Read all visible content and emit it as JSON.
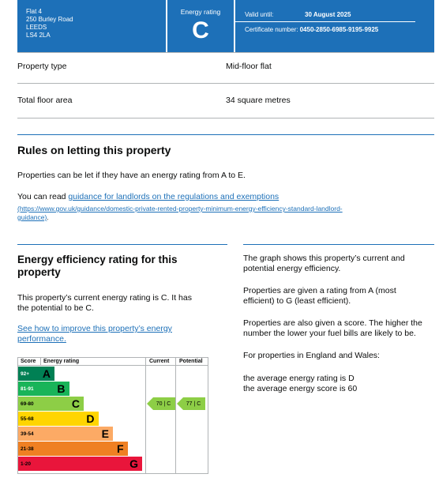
{
  "header": {
    "address": [
      "Flat 4",
      "250 Burley Road",
      "LEEDS",
      "LS4 2LA"
    ],
    "energy_rating_label": "Energy rating",
    "energy_rating_value": "C",
    "valid_until_label": "Valid until:",
    "valid_until_value": "30 August 2025",
    "certificate_label": "Certificate number:",
    "certificate_value": "0450-2850-6985-9195-9925"
  },
  "summary": [
    {
      "key": "Property type",
      "value": "Mid-floor flat"
    },
    {
      "key": "Total floor area",
      "value": "34 square metres"
    }
  ],
  "letting": {
    "heading": "Rules on letting this property",
    "para1": "Properties can be let if they have an energy rating from A to E.",
    "para2_prefix": "You can read ",
    "link_text": "guidance for landlords on the regulations and exemptions",
    "link_url_line1": "(https://www.gov.uk/guidance/domestic-private-rented-property-minimum-energy-efficiency-standard-landlord-",
    "link_url_line2": "guidance)",
    "para2_suffix": "."
  },
  "efficiency": {
    "heading_line1": "Energy efficiency rating for this",
    "heading_line2": "property",
    "para1_line1": "This property’s current energy rating is C. It has",
    "para1_line2": "the potential to be C.",
    "link_line1": "See how to improve this property’s energy",
    "link_line2": "performance.",
    "right_paras": [
      [
        "The graph shows this property’s current and",
        "potential energy efficiency."
      ],
      [
        "Properties are given a rating from A (most",
        "efficient) to G (least efficient)."
      ],
      [
        "Properties are also given a score. The higher the",
        "number the lower your fuel bills are likely to be."
      ],
      [
        "For properties in England and Wales:"
      ],
      [
        "the average energy rating is D",
        "the average energy score is 60"
      ]
    ]
  },
  "chart_data": {
    "type": "table",
    "columns": [
      "Score",
      "Energy rating",
      "Current",
      "Potential"
    ],
    "bands": [
      {
        "score": "92+",
        "letter": "A",
        "color": "#008054"
      },
      {
        "score": "81-91",
        "letter": "B",
        "color": "#19b459"
      },
      {
        "score": "69-80",
        "letter": "C",
        "color": "#8dce46"
      },
      {
        "score": "55-68",
        "letter": "D",
        "color": "#ffd500"
      },
      {
        "score": "39-54",
        "letter": "E",
        "color": "#fcaa65"
      },
      {
        "score": "21-38",
        "letter": "F",
        "color": "#ef8023"
      },
      {
        "score": "1-20",
        "letter": "G",
        "color": "#e9153b"
      }
    ],
    "current": {
      "score": 70,
      "letter": "C",
      "label": "70 | C"
    },
    "potential": {
      "score": 77,
      "letter": "C",
      "label": "77 | C"
    }
  }
}
